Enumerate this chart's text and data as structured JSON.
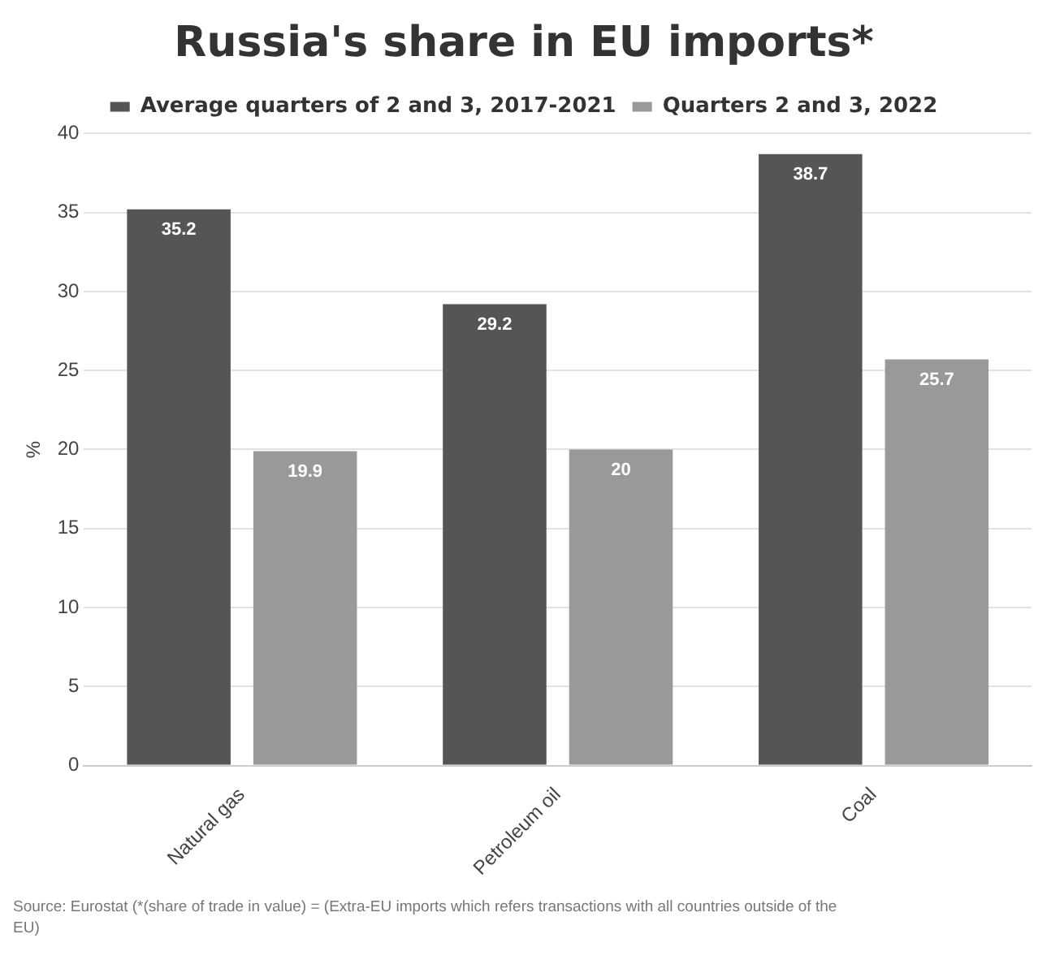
{
  "chart_data": {
    "type": "bar",
    "title": "Russia's share in EU imports*",
    "ylabel": "%",
    "categories": [
      "Natural gas",
      "Petroleum oil",
      "Coal"
    ],
    "series": [
      {
        "name": "Average quarters of 2 and 3, 2017-2021",
        "color": "#555555",
        "values": [
          35.2,
          29.2,
          38.7
        ]
      },
      {
        "name": "Quarters 2 and 3, 2022",
        "color": "#999999",
        "values": [
          19.9,
          20,
          25.7
        ]
      }
    ],
    "ylim": [
      0,
      40
    ],
    "yticks": [
      0,
      5,
      10,
      15,
      20,
      25,
      30,
      35,
      40
    ],
    "grid": "y",
    "legend": "top",
    "data_labels": true,
    "annotations": [
      "Source: Eurostat (*(share of trade in value) = (Extra-EU imports which refers transactions with all countries outside of the EU)"
    ]
  }
}
